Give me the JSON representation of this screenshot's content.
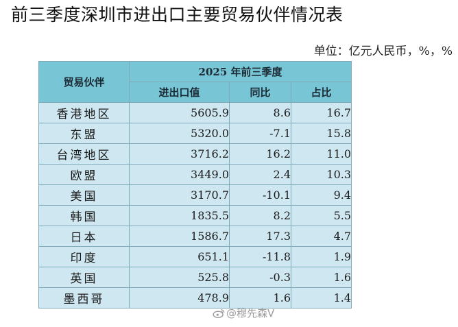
{
  "title": "前三季度深圳市进出口主要贸易伙伴情况表",
  "unit_label": "单位：亿元人民币，%，%",
  "table": {
    "partner_header": "贸易伙伴",
    "period_header": "2025 年前三季度",
    "columns": [
      "进出口值",
      "同比",
      "占比"
    ],
    "rows": [
      {
        "partner": "香港地区",
        "value": "5605.9",
        "yoy": "8.6",
        "share": "16.7"
      },
      {
        "partner": "东盟",
        "value": "5320.0",
        "yoy": "-7.1",
        "share": "15.8"
      },
      {
        "partner": "台湾地区",
        "value": "3716.2",
        "yoy": "16.2",
        "share": "11.0"
      },
      {
        "partner": "欧盟",
        "value": "3449.0",
        "yoy": "2.4",
        "share": "10.3"
      },
      {
        "partner": "美国",
        "value": "3170.7",
        "yoy": "-10.1",
        "share": "9.4"
      },
      {
        "partner": "韩国",
        "value": "1835.5",
        "yoy": "8.2",
        "share": "5.5"
      },
      {
        "partner": "日本",
        "value": "1586.7",
        "yoy": "17.3",
        "share": "4.7"
      },
      {
        "partner": "印度",
        "value": "651.1",
        "yoy": "-11.8",
        "share": "1.9"
      },
      {
        "partner": "英国",
        "value": "525.8",
        "yoy": "-0.3",
        "share": "1.6"
      },
      {
        "partner": "墨西哥",
        "value": "478.9",
        "yoy": "1.6",
        "share": "1.4"
      }
    ]
  },
  "watermark": "@穆先森V",
  "icons": {
    "watermark_icon": "weibo-icon"
  },
  "colors": {
    "header_bg": "#78c5d6",
    "cell_bg": "#cfe7f0",
    "border": "#7fa8b8"
  }
}
